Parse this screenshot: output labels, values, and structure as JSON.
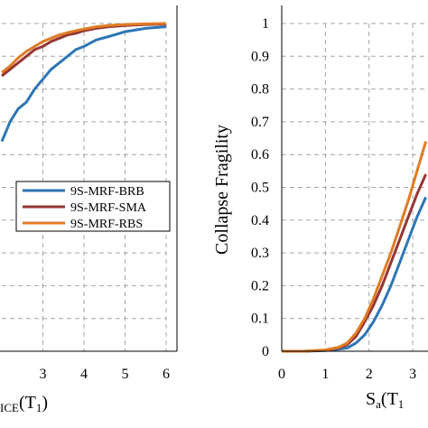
{
  "colors": {
    "9S-MRF-BRB": "#2E75B6",
    "9S-MRF-SMA": "#943634",
    "9S-MRF-RBS": "#E07B24",
    "grid": "#a6a6a6"
  },
  "chart_data": [
    {
      "type": "line",
      "title": "",
      "xlabel_main": "",
      "xlabel_sub": "ICE",
      "xlabel_paren": "(T",
      "xlabel_paren_sub": "1",
      "xlabel_close": ")",
      "xlim": [
        2,
        6
      ],
      "ylim": [
        0,
        1
      ],
      "xticks": [
        3,
        4,
        5,
        6
      ],
      "grid": true,
      "legend": {
        "placement": "center-right",
        "entries": [
          "9S-MRF-BRB",
          "9S-MRF-SMA",
          "9S-MRF-RBS"
        ]
      },
      "series": [
        {
          "name": "9S-MRF-BRB",
          "x": [
            2.0,
            2.1,
            2.2,
            2.4,
            2.6,
            2.8,
            3.0,
            3.2,
            3.4,
            3.6,
            3.8,
            4.0,
            4.3,
            4.6,
            5.0,
            5.5,
            6.0
          ],
          "y": [
            0.64,
            0.67,
            0.7,
            0.74,
            0.76,
            0.8,
            0.83,
            0.86,
            0.88,
            0.9,
            0.92,
            0.93,
            0.95,
            0.96,
            0.975,
            0.985,
            0.99
          ]
        },
        {
          "name": "9S-MRF-SMA",
          "x": [
            2.0,
            2.2,
            2.4,
            2.6,
            2.8,
            3.0,
            3.2,
            3.4,
            3.6,
            3.8,
            4.0,
            4.3,
            4.6,
            5.0,
            5.5,
            6.0
          ],
          "y": [
            0.84,
            0.86,
            0.88,
            0.9,
            0.92,
            0.93,
            0.945,
            0.955,
            0.965,
            0.97,
            0.978,
            0.985,
            0.99,
            0.994,
            0.997,
            0.998
          ]
        },
        {
          "name": "9S-MRF-RBS",
          "x": [
            2.0,
            2.2,
            2.4,
            2.6,
            2.8,
            3.0,
            3.2,
            3.4,
            3.6,
            3.8,
            4.0,
            4.3,
            4.6,
            5.0,
            5.5,
            6.0
          ],
          "y": [
            0.85,
            0.87,
            0.895,
            0.915,
            0.93,
            0.945,
            0.955,
            0.965,
            0.972,
            0.978,
            0.983,
            0.99,
            0.994,
            0.997,
            0.999,
            1.0
          ]
        }
      ]
    },
    {
      "type": "line",
      "title": "",
      "xlabel_main": "S",
      "xlabel_sub": "a",
      "xlabel_paren": "(T",
      "xlabel_paren_sub": "1",
      "xlabel_close": "",
      "ylabel": "Collapse Fragility",
      "xlim": [
        0,
        3.35
      ],
      "ylim": [
        0,
        1
      ],
      "xticks": [
        0,
        1,
        2,
        3
      ],
      "yticks": [
        0,
        0.1,
        0.2,
        0.3,
        0.4,
        0.5,
        0.6,
        0.7,
        0.8,
        0.9,
        1
      ],
      "ytick_labels": [
        "0",
        "0.1",
        "0.2",
        "0.3",
        "0.4",
        "0.5",
        "0.6",
        "0.7",
        "0.8",
        "0.9",
        "1"
      ],
      "grid": true,
      "series": [
        {
          "name": "9S-MRF-BRB",
          "x": [
            0,
            0.5,
            1.0,
            1.3,
            1.5,
            1.7,
            1.9,
            2.1,
            2.3,
            2.5,
            2.7,
            2.9,
            3.1,
            3.3
          ],
          "y": [
            0,
            0.0,
            0.002,
            0.006,
            0.01,
            0.025,
            0.05,
            0.09,
            0.14,
            0.2,
            0.27,
            0.34,
            0.41,
            0.47
          ]
        },
        {
          "name": "9S-MRF-SMA",
          "x": [
            0,
            0.5,
            1.0,
            1.3,
            1.5,
            1.7,
            1.9,
            2.1,
            2.3,
            2.5,
            2.7,
            2.9,
            3.1,
            3.3
          ],
          "y": [
            0,
            0.0,
            0.003,
            0.01,
            0.02,
            0.045,
            0.09,
            0.14,
            0.2,
            0.27,
            0.34,
            0.41,
            0.48,
            0.54
          ]
        },
        {
          "name": "9S-MRF-RBS",
          "x": [
            0,
            0.5,
            1.0,
            1.3,
            1.5,
            1.7,
            1.9,
            2.1,
            2.3,
            2.5,
            2.7,
            2.9,
            3.1,
            3.3
          ],
          "y": [
            0,
            0.0,
            0.004,
            0.012,
            0.025,
            0.055,
            0.1,
            0.16,
            0.23,
            0.3,
            0.38,
            0.46,
            0.55,
            0.64
          ]
        }
      ]
    }
  ]
}
